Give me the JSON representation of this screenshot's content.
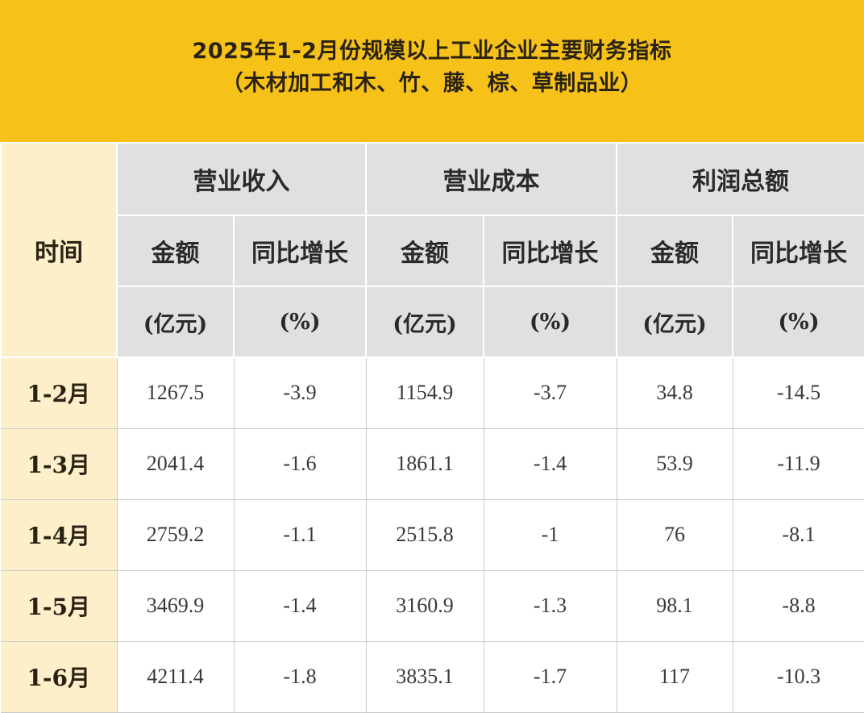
{
  "title": {
    "line1": "2025年1-2月份规模以上工业企业主要财务指标",
    "line2": "（木材加工和木、竹、藤、棕、草制品业）"
  },
  "table": {
    "time_header": "时间",
    "groups": [
      "营业收入",
      "营业成本",
      "利润总额"
    ],
    "subheaders": [
      "金额",
      "同比增长",
      "金额",
      "同比增长",
      "金额",
      "同比增长"
    ],
    "units": [
      "(亿元)",
      "(%)",
      "(亿元)",
      "(%)",
      "(亿元)",
      "(%)"
    ],
    "rows": [
      {
        "period": "1-2月",
        "cells": [
          "1267.5",
          "-3.9",
          "1154.9",
          "-3.7",
          "34.8",
          "-14.5"
        ]
      },
      {
        "period": "1-3月",
        "cells": [
          "2041.4",
          "-1.6",
          "1861.1",
          "-1.4",
          "53.9",
          "-11.9"
        ]
      },
      {
        "period": "1-4月",
        "cells": [
          "2759.2",
          "-1.1",
          "2515.8",
          "-1",
          "76",
          "-8.1"
        ]
      },
      {
        "period": "1-5月",
        "cells": [
          "3469.9",
          "-1.4",
          "3160.9",
          "-1.3",
          "98.1",
          "-8.8"
        ]
      },
      {
        "period": "1-6月",
        "cells": [
          "4211.4",
          "-1.8",
          "3835.1",
          "-1.7",
          "117",
          "-10.3"
        ]
      }
    ]
  },
  "colors": {
    "banner": "#f6c21a",
    "time_column": "#fcefc9",
    "header_gray": "#e0e0e0"
  }
}
